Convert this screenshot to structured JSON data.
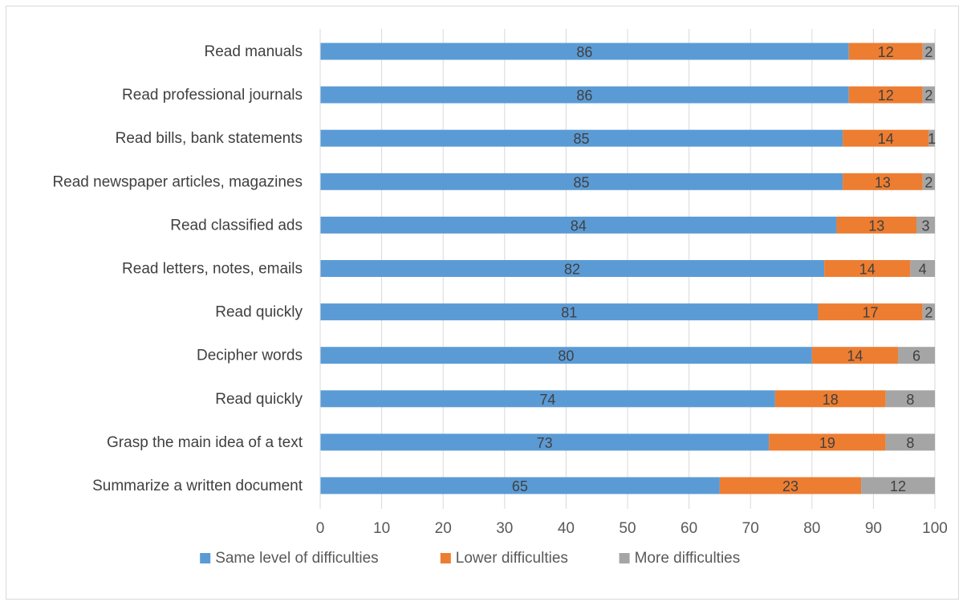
{
  "chart_data": {
    "type": "bar",
    "orientation": "horizontal",
    "stacked": true,
    "categories": [
      "Read manuals",
      "Read professional journals",
      "Read bills, bank statements",
      "Read newspaper articles, magazines",
      "Read classified ads",
      "Read letters, notes, emails",
      "Read quickly",
      "Decipher words",
      "Read quickly",
      "Grasp the main idea of a text",
      "Summarize a written document"
    ],
    "series": [
      {
        "name": "Same level of difficulties",
        "color": "#5b9bd5",
        "values": [
          86,
          86,
          85,
          85,
          84,
          82,
          81,
          80,
          74,
          73,
          65
        ]
      },
      {
        "name": "Lower difficulties",
        "color": "#ed7d31",
        "values": [
          12,
          12,
          14,
          13,
          13,
          14,
          17,
          14,
          18,
          19,
          23
        ]
      },
      {
        "name": "More difficulties",
        "color": "#a5a5a5",
        "values": [
          2,
          2,
          1,
          2,
          3,
          4,
          2,
          6,
          8,
          8,
          12
        ]
      }
    ],
    "xlim": [
      0,
      100
    ],
    "xticks": [
      "0",
      "10",
      "20",
      "30",
      "40",
      "50",
      "60",
      "70",
      "80",
      "90",
      "100"
    ],
    "grid": true,
    "legend_position": "bottom",
    "data_labels": true,
    "title": "",
    "xlabel": "",
    "ylabel": ""
  }
}
